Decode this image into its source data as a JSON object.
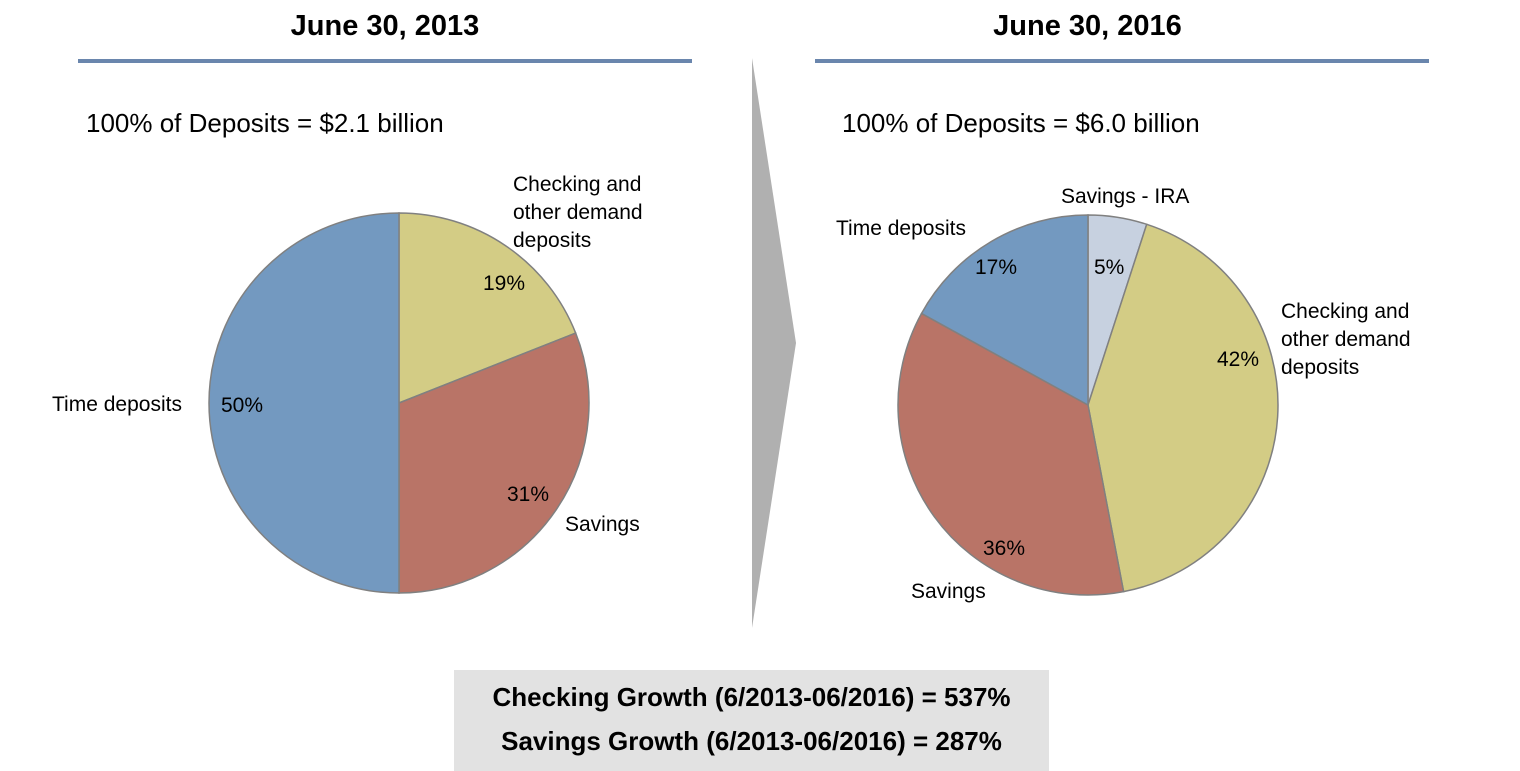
{
  "panels": [
    {
      "title": "June 30, 2013",
      "total": "100% of Deposits = $2.1 billion"
    },
    {
      "title": "June 30, 2016",
      "total": "100% of Deposits = $6.0 billion"
    }
  ],
  "summary": {
    "checking_growth": "Checking Growth (6/2013-06/2016) = 537%",
    "savings_growth": "Savings Growth (6/2013-06/2016) = 287%"
  },
  "colors": {
    "time_deposits": "#7399c0",
    "savings": "#b97467",
    "checking": "#d3cc85",
    "savings_ira": "#c7d1e0",
    "rule": "#6a86ad",
    "arrow": "#b0b0b0",
    "summary_bg": "#e2e2e2",
    "slice_edge": "#808080"
  },
  "chart_data": [
    {
      "type": "pie",
      "title": "June 30, 2013",
      "subtitle": "100% of Deposits = $2.1 billion",
      "start": "12 o'clock, clockwise",
      "slices": [
        {
          "key": "checking",
          "label": "Checking and\nother demand\ndeposits",
          "value": 19,
          "value_label": "19%"
        },
        {
          "key": "savings",
          "label": "Savings",
          "value": 31,
          "value_label": "31%"
        },
        {
          "key": "time_deposits",
          "label": "Time deposits",
          "value": 50,
          "value_label": "50%"
        }
      ]
    },
    {
      "type": "pie",
      "title": "June 30, 2016",
      "subtitle": "100% of Deposits = $6.0 billion",
      "start": "12 o'clock, clockwise",
      "slices": [
        {
          "key": "savings_ira",
          "label": "Savings - IRA",
          "value": 5,
          "value_label": "5%"
        },
        {
          "key": "checking",
          "label": "Checking and\nother demand\ndeposits",
          "value": 42,
          "value_label": "42%"
        },
        {
          "key": "savings",
          "label": "Savings",
          "value": 36,
          "value_label": "36%"
        },
        {
          "key": "time_deposits",
          "label": "Time deposits",
          "value": 17,
          "value_label": "17%"
        }
      ]
    }
  ]
}
